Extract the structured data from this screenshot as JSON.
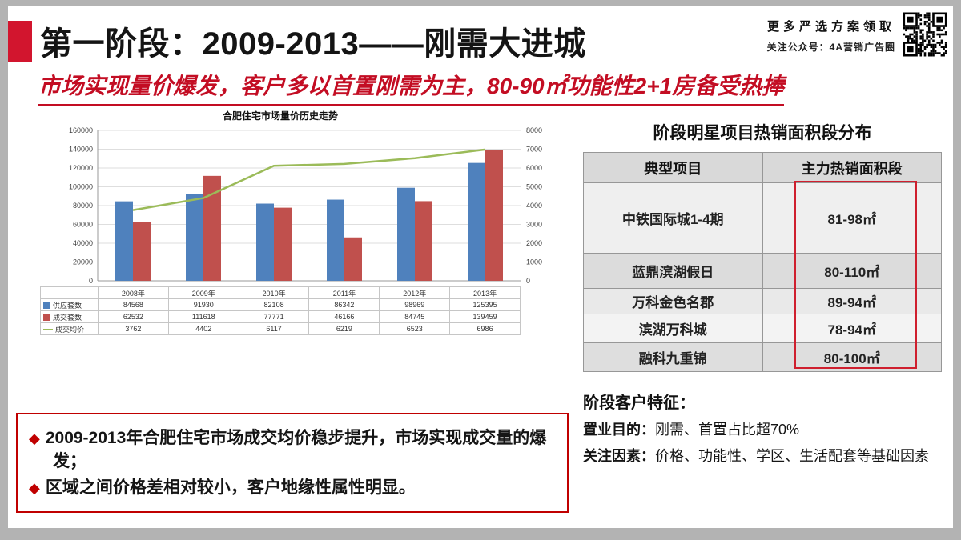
{
  "slide": {
    "title": "第一阶段：2009-2013——刚需大进城",
    "subtitle": "市场实现量价爆发，客户多以首置刚需为主，80-90㎡功能性2+1房备受热捧",
    "promo": {
      "line1": "更多严选方案领取",
      "line2": "关注公众号：4A营销广告圈"
    }
  },
  "chart_data": {
    "type": "bar",
    "title": "合肥住宅市场量价历史走势",
    "categories": [
      "2008年",
      "2009年",
      "2010年",
      "2011年",
      "2012年",
      "2013年"
    ],
    "series": [
      {
        "name": "供应套数",
        "type": "bar",
        "axis": "left",
        "color": "#4f81bd",
        "values": [
          84568,
          91930,
          82108,
          86342,
          98969,
          125395
        ]
      },
      {
        "name": "成交套数",
        "type": "bar",
        "axis": "left",
        "color": "#c0504d",
        "values": [
          62532,
          111618,
          77771,
          46166,
          84745,
          139459
        ]
      },
      {
        "name": "成交均价",
        "type": "line",
        "axis": "right",
        "color": "#9bbb59",
        "values": [
          3762,
          4402,
          6117,
          6219,
          6523,
          6986
        ]
      }
    ],
    "left_axis": {
      "min": 0,
      "max": 160000,
      "step": 20000
    },
    "right_axis": {
      "min": 0,
      "max": 8000,
      "step": 1000
    },
    "grid": true,
    "legend_position": "table-below"
  },
  "right_panel": {
    "table_title": "阶段明星项目热销面积段分布",
    "table": {
      "headers": [
        "典型项目",
        "主力热销面积段"
      ],
      "rows": [
        {
          "project": "中铁国际城1-4期",
          "area": "81-98㎡"
        },
        {
          "project": "蓝鼎滨湖假日",
          "area": "80-110㎡"
        },
        {
          "project": "万科金色名郡",
          "area": "89-94㎡"
        },
        {
          "project": "滨湖万科城",
          "area": "78-94㎡"
        },
        {
          "project": "融科九重锦",
          "area": "80-100㎡"
        }
      ]
    },
    "customer": {
      "heading": "阶段客户特征：",
      "purpose_label": "置业目的：",
      "purpose_text": "刚需、首置占比超70%",
      "factors_label": "关注因素：",
      "factors_text": "价格、功能性、学区、生活配套等基础因素"
    }
  },
  "summary_box": {
    "bullets": [
      "2009-2013年合肥住宅市场成交均价稳步提升，市场实现成交量的爆发；",
      "区域之间价格差相对较小，客户地缘性属性明显。"
    ]
  },
  "colors": {
    "accent_red": "#d2152e",
    "subtitle_red": "#c30d23",
    "box_border_red": "#c00000",
    "bar_blue": "#4f81bd",
    "bar_red": "#c0504d",
    "line_green": "#9bbb59",
    "table_header_gray": "#d9d9d9",
    "frame_gray": "#b3b3b3"
  }
}
